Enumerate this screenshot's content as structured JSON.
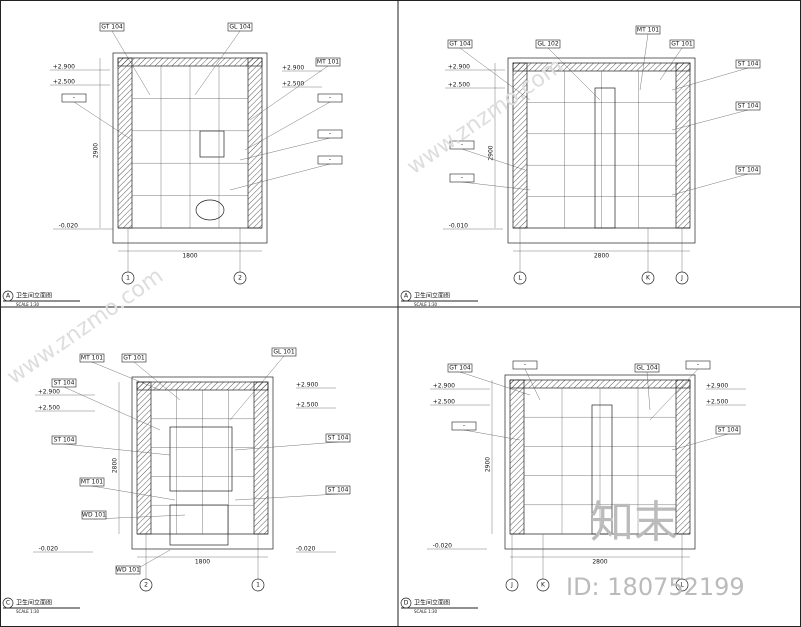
{
  "panels": [
    {
      "marker": "A",
      "title": "卫生间立面图",
      "scale": "SCALE 1:30",
      "tags": [
        "GT 104",
        "GL 104",
        "MT 101",
        "-",
        "-",
        "-",
        "-"
      ],
      "levels": [
        "+2.900",
        "+2.500",
        "-0.020",
        "+2.900",
        "+2.500"
      ],
      "axes": [
        "1",
        "2"
      ],
      "dims": [
        "2900",
        "1800"
      ]
    },
    {
      "marker": "A",
      "title": "卫生间立面图",
      "scale": "SCALE 1:30",
      "tags": [
        "GT 104",
        "GL 102",
        "MT 101",
        "GT 101",
        "ST 104",
        "ST 104",
        "ST 104",
        "-",
        "-"
      ],
      "levels": [
        "+2.900",
        "+2.500",
        "-0.010"
      ],
      "axes": [
        "L",
        "K",
        "J"
      ],
      "dims": [
        "2900",
        "2800"
      ]
    },
    {
      "marker": "C",
      "title": "卫生间立面图",
      "scale": "SCALE 1:30",
      "tags": [
        "MT 101",
        "GT 101",
        "GL 101",
        "ST 104",
        "ST 104",
        "ST 104",
        "ST 104",
        "MT 101",
        "WD 101",
        "WD 101"
      ],
      "levels": [
        "+2.500",
        "+2.900",
        "+2.900",
        "+2.500",
        "-0.020",
        "-0.020"
      ],
      "axes": [
        "2",
        "1"
      ],
      "dims": [
        "2800",
        "1800"
      ]
    },
    {
      "marker": "D",
      "title": "卫生间立面图",
      "scale": "SCALE 1:30",
      "tags": [
        "GT 104",
        "-",
        "GL 104",
        "-",
        "-",
        "ST 104"
      ],
      "levels": [
        "+2.900",
        "+2.500",
        "-0.020",
        "+2.900",
        "+2.500"
      ],
      "axes": [
        "J",
        "K",
        "L"
      ],
      "dims": [
        "2900",
        "2800"
      ]
    }
  ],
  "watermark": {
    "brand": "知末",
    "id": "ID: 180752199",
    "site": "www.znzmo.com"
  }
}
